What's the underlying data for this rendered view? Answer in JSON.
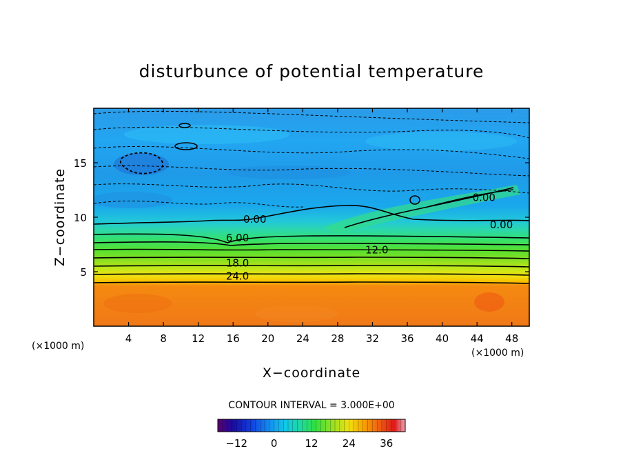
{
  "chart_data": {
    "type": "heatmap",
    "title": "disturbunce of potential temperature",
    "xlabel": "X−coordinate",
    "ylabel": "Z−coordinate",
    "x_unit_left": "(×1000 m)",
    "x_unit_right": "(×1000 m)",
    "xlim": [
      0,
      50
    ],
    "ylim": [
      0,
      20
    ],
    "x_ticks": [
      4,
      8,
      12,
      16,
      20,
      24,
      28,
      32,
      36,
      40,
      44,
      48
    ],
    "y_ticks": [
      5,
      10,
      15
    ],
    "contour_interval_text": "CONTOUR INTERVAL = 3.000E+00",
    "contour_interval": 3.0,
    "colorbar": {
      "min": -18,
      "max": 42,
      "ticks": [
        -12,
        0,
        12,
        24,
        36
      ],
      "tick_labels": [
        "−12",
        "0",
        "12",
        "24",
        "36"
      ]
    },
    "contour_labels": [
      {
        "text": "24.0",
        "x": 16.5,
        "y": 4.6
      },
      {
        "text": "18.0",
        "x": 16.5,
        "y": 5.8
      },
      {
        "text": "12.0",
        "x": 32.5,
        "y": 7.0
      },
      {
        "text": "6.00",
        "x": 16.5,
        "y": 8.1
      },
      {
        "text": "0.00",
        "x": 18.5,
        "y": 9.8
      },
      {
        "text": "0.00",
        "x": 46.8,
        "y": 9.3
      },
      {
        "text": "0.00",
        "x": 44.8,
        "y": 11.8
      }
    ],
    "grid": false
  }
}
